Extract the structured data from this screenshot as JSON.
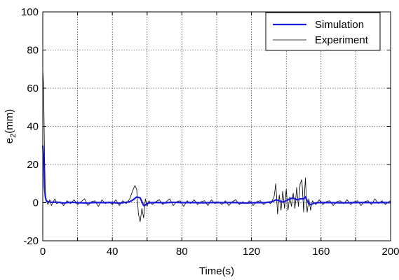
{
  "chart_data": {
    "type": "line",
    "title": "",
    "xlabel": "Time(s)",
    "ylabel_main": "e",
    "ylabel_sub": "2",
    "ylabel_unit": "(mm)",
    "xlim": [
      0,
      200
    ],
    "ylim": [
      -20,
      100
    ],
    "xticks": [
      0,
      40,
      80,
      120,
      160,
      200
    ],
    "xticks_minor": [
      20,
      60,
      100,
      140,
      180
    ],
    "yticks": [
      -20,
      0,
      20,
      40,
      60,
      80,
      100
    ],
    "grid": true,
    "legend_position": "top-right",
    "series": [
      {
        "name": "Simulation",
        "color": "#1a1adb",
        "points": [
          [
            0,
            30
          ],
          [
            0.6,
            22
          ],
          [
            1,
            8
          ],
          [
            1.5,
            3
          ],
          [
            2,
            1
          ],
          [
            3,
            0.5
          ],
          [
            5,
            0.2
          ],
          [
            8,
            0.3
          ],
          [
            12,
            -0.2
          ],
          [
            16,
            0.2
          ],
          [
            20,
            0
          ],
          [
            25,
            -0.2
          ],
          [
            30,
            0.1
          ],
          [
            35,
            0
          ],
          [
            40,
            0.1
          ],
          [
            44,
            -0.3
          ],
          [
            48,
            0.2
          ],
          [
            50,
            0.5
          ],
          [
            52,
            1.5
          ],
          [
            54,
            3
          ],
          [
            56,
            2.5
          ],
          [
            57,
            0.5
          ],
          [
            58,
            -1.5
          ],
          [
            59,
            -1.3
          ],
          [
            60,
            -0.4
          ],
          [
            62,
            0
          ],
          [
            66,
            0.1
          ],
          [
            70,
            -0.1
          ],
          [
            75,
            0.2
          ],
          [
            80,
            0
          ],
          [
            86,
            0.1
          ],
          [
            92,
            -0.1
          ],
          [
            98,
            0.1
          ],
          [
            104,
            0
          ],
          [
            110,
            0.1
          ],
          [
            116,
            -0.2
          ],
          [
            122,
            0
          ],
          [
            128,
            0
          ],
          [
            132,
            0.5
          ],
          [
            134,
            1.5
          ],
          [
            136,
            1
          ],
          [
            138,
            0.3
          ],
          [
            140,
            1
          ],
          [
            142,
            2
          ],
          [
            144,
            2.5
          ],
          [
            146,
            1.5
          ],
          [
            148,
            2
          ],
          [
            150,
            2
          ],
          [
            151,
            3
          ],
          [
            152,
            1
          ],
          [
            153,
            -0.5
          ],
          [
            154,
            -1
          ],
          [
            156,
            -0.3
          ],
          [
            158,
            0
          ],
          [
            160,
            0.1
          ],
          [
            166,
            0
          ],
          [
            172,
            -0.1
          ],
          [
            178,
            0
          ],
          [
            184,
            0.1
          ],
          [
            190,
            0
          ],
          [
            196,
            0.1
          ],
          [
            200,
            0
          ]
        ]
      },
      {
        "name": "Experiment",
        "color": "#000000",
        "points": [
          [
            0,
            70
          ],
          [
            0.5,
            60
          ],
          [
            1,
            25
          ],
          [
            1.5,
            5
          ],
          [
            2,
            1
          ],
          [
            3,
            -1
          ],
          [
            4,
            1.5
          ],
          [
            5,
            -1.5
          ],
          [
            6,
            0.5
          ],
          [
            7,
            2
          ],
          [
            8,
            -0.5
          ],
          [
            10,
            0.5
          ],
          [
            12,
            -1.5
          ],
          [
            14,
            1
          ],
          [
            16,
            -0.5
          ],
          [
            18,
            1.5
          ],
          [
            20,
            -1
          ],
          [
            22,
            0.5
          ],
          [
            24,
            2
          ],
          [
            26,
            -1.5
          ],
          [
            28,
            0.5
          ],
          [
            30,
            1
          ],
          [
            32,
            -2
          ],
          [
            34,
            1.5
          ],
          [
            36,
            -0.5
          ],
          [
            38,
            0.5
          ],
          [
            40,
            -1
          ],
          [
            42,
            1.5
          ],
          [
            44,
            -1.5
          ],
          [
            46,
            1
          ],
          [
            48,
            -0.5
          ],
          [
            50,
            2
          ],
          [
            52,
            7
          ],
          [
            53,
            9
          ],
          [
            54,
            7
          ],
          [
            55,
            -6
          ],
          [
            56,
            -10
          ],
          [
            57,
            -3
          ],
          [
            58,
            -8
          ],
          [
            59,
            2
          ],
          [
            60,
            -2
          ],
          [
            61,
            1
          ],
          [
            63,
            -1
          ],
          [
            65,
            0.5
          ],
          [
            67,
            1.5
          ],
          [
            69,
            -1
          ],
          [
            71,
            0.5
          ],
          [
            73,
            2
          ],
          [
            75,
            -1.5
          ],
          [
            77,
            0.5
          ],
          [
            79,
            1
          ],
          [
            81,
            -2
          ],
          [
            83,
            1
          ],
          [
            85,
            -0.5
          ],
          [
            87,
            1.5
          ],
          [
            89,
            -1
          ],
          [
            91,
            0.5
          ],
          [
            93,
            1
          ],
          [
            95,
            -1.5
          ],
          [
            97,
            1.5
          ],
          [
            99,
            -0.5
          ],
          [
            101,
            0.5
          ],
          [
            103,
            -1
          ],
          [
            105,
            1
          ],
          [
            107,
            -1.5
          ],
          [
            109,
            0.5
          ],
          [
            111,
            1.5
          ],
          [
            113,
            -1
          ],
          [
            115,
            0.5
          ],
          [
            117,
            -0.5
          ],
          [
            119,
            1
          ],
          [
            121,
            -1.5
          ],
          [
            123,
            0.5
          ],
          [
            125,
            1
          ],
          [
            127,
            -1
          ],
          [
            129,
            0.5
          ],
          [
            131,
            -0.5
          ],
          [
            133,
            3
          ],
          [
            134,
            10
          ],
          [
            135,
            -6
          ],
          [
            136,
            4
          ],
          [
            137,
            -4
          ],
          [
            138,
            6
          ],
          [
            139,
            -3
          ],
          [
            140,
            7
          ],
          [
            141,
            -4
          ],
          [
            142,
            3
          ],
          [
            143,
            -2
          ],
          [
            144,
            5
          ],
          [
            145,
            -3
          ],
          [
            146,
            8
          ],
          [
            147,
            -2
          ],
          [
            148,
            10
          ],
          [
            149,
            12
          ],
          [
            150,
            -5
          ],
          [
            151,
            13
          ],
          [
            152,
            -5
          ],
          [
            153,
            2
          ],
          [
            154,
            -4
          ],
          [
            155,
            1
          ],
          [
            157,
            -1
          ],
          [
            159,
            1.5
          ],
          [
            161,
            -1
          ],
          [
            163,
            0.5
          ],
          [
            165,
            1
          ],
          [
            167,
            -1.5
          ],
          [
            169,
            0.5
          ],
          [
            171,
            1
          ],
          [
            173,
            -0.5
          ],
          [
            175,
            1.5
          ],
          [
            177,
            -1
          ],
          [
            179,
            0.5
          ],
          [
            181,
            1
          ],
          [
            183,
            -1.5
          ],
          [
            185,
            0.5
          ],
          [
            187,
            1
          ],
          [
            189,
            -1
          ],
          [
            191,
            2
          ],
          [
            193,
            -0.5
          ],
          [
            195,
            1
          ],
          [
            197,
            -1
          ],
          [
            199,
            0.5
          ],
          [
            200,
            1
          ]
        ]
      }
    ]
  }
}
